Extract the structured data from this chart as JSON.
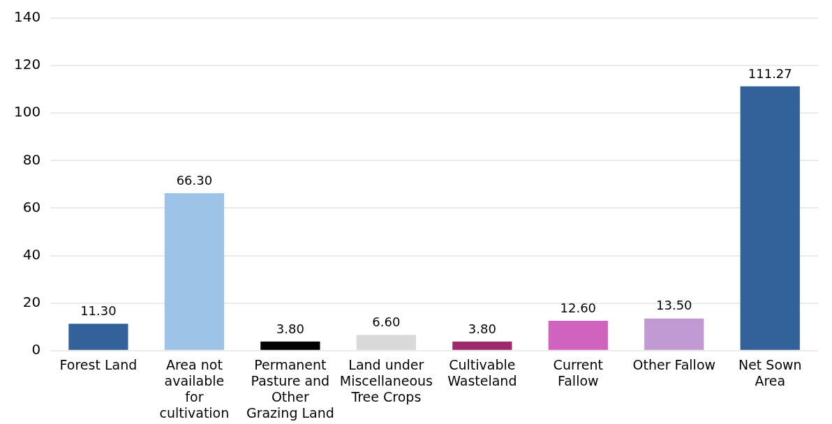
{
  "chart_data": {
    "type": "bar",
    "categories": [
      "Forest Land",
      "Area not available for cultivation",
      "Permanent Pasture and Other Grazing Land",
      "Land under Miscellaneous Tree Crops",
      "Cultivable Wasteland",
      "Current Fallow",
      "Other Fallow",
      "Net Sown Area"
    ],
    "values": [
      11.3,
      66.3,
      3.8,
      6.6,
      3.8,
      12.6,
      13.5,
      111.27
    ],
    "colors": [
      "#336199",
      "#9dc3e6",
      "#000000",
      "#d9d9d9",
      "#9e2a6e",
      "#d063bd",
      "#c19ad3",
      "#336199"
    ],
    "value_labels": [
      "11.30",
      "66.30",
      "3.80",
      "6.60",
      "3.80",
      "12.60",
      "13.50",
      "111.27"
    ],
    "ylim": [
      0,
      140
    ],
    "yticks": [
      0,
      20,
      40,
      60,
      80,
      100,
      120,
      140
    ],
    "grid": "y",
    "legend": false
  }
}
